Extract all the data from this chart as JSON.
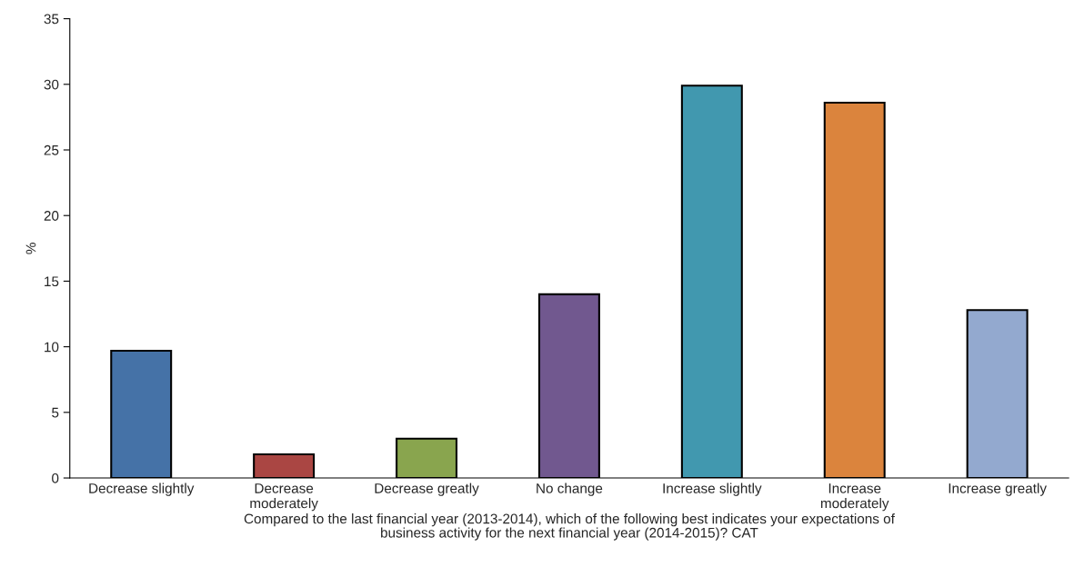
{
  "chart_data": {
    "type": "bar",
    "ylabel": "%",
    "xlabel": "Compared to the last financial year (2013-2014), which of the following best indicates your expectations of\nbusiness activity for the next financial year (2014-2015)? CAT",
    "categories": [
      "Decrease slightly",
      "Decrease\nmoderately",
      "Decrease greatly",
      "No change",
      "Increase slightly",
      "Increase\nmoderately",
      "Increase greatly"
    ],
    "values": [
      9.7,
      1.8,
      3.0,
      14.0,
      29.9,
      28.6,
      12.8
    ],
    "colors": [
      "#4572a7",
      "#aa4643",
      "#89a54e",
      "#71588f",
      "#4198af",
      "#db843d",
      "#93a9cf"
    ],
    "ylim": [
      0,
      35
    ],
    "yticks": [
      0,
      5,
      10,
      15,
      20,
      25,
      30,
      35
    ],
    "grid": false
  }
}
